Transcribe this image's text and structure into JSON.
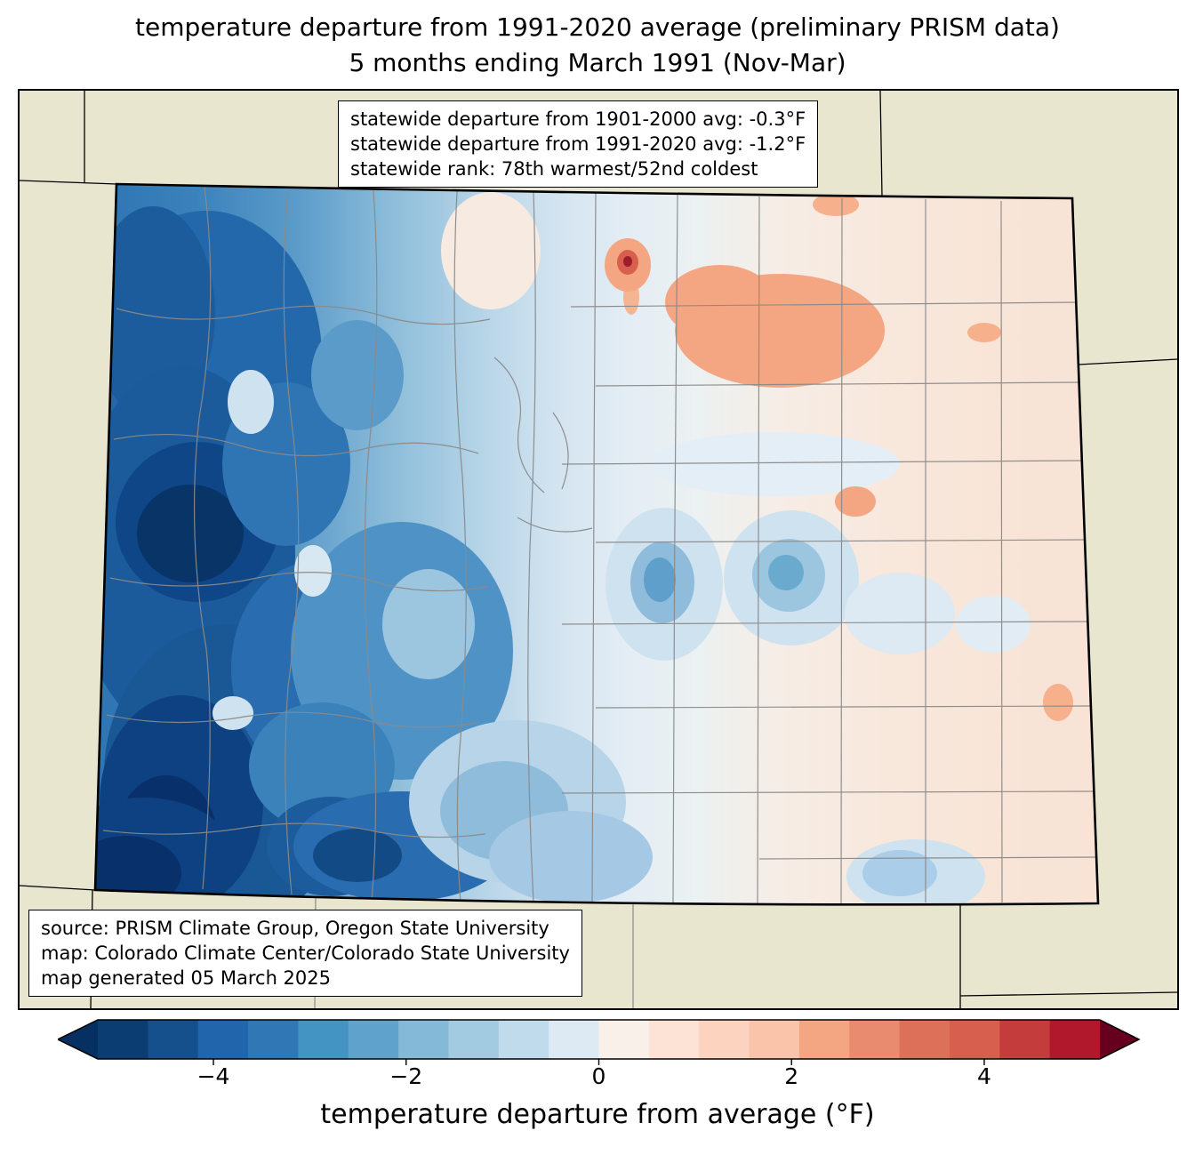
{
  "title": {
    "line1": "temperature departure from 1991-2020 average (preliminary PRISM data)",
    "line2": "5 months ending March 1991 (Nov-Mar)"
  },
  "stats_box": {
    "lines": [
      "statewide departure from 1901-2000 avg: -0.3°F",
      "statewide departure from 1991-2020 avg: -1.2°F",
      "statewide rank: 78th warmest/52nd coldest"
    ]
  },
  "source_box": {
    "lines": [
      "source: PRISM Climate Group, Oregon State University",
      "map: Colorado Climate Center/Colorado State University",
      "map generated 05 March 2025"
    ]
  },
  "colorbar": {
    "label": "temperature departure from average (°F)",
    "ticks": [
      "−4",
      "−2",
      "0",
      "2",
      "4"
    ],
    "tick_values": [
      -4,
      -2,
      0,
      2,
      4
    ],
    "range": [
      -5.2,
      5.2
    ],
    "left_color": "#053061",
    "right_color": "#67001f",
    "segment_colors": [
      "#0b3d73",
      "#15508c",
      "#2166ac",
      "#3077b5",
      "#4393c3",
      "#5fa3cd",
      "#84b9d8",
      "#a2cbe2",
      "#c0dcec",
      "#ddeaf3",
      "#faf0ea",
      "#fde3d6",
      "#fcd3bf",
      "#f9c4a9",
      "#f4a582",
      "#e98b6f",
      "#dd7059",
      "#d6604d",
      "#c43c3c",
      "#b2182b"
    ]
  },
  "colors": {
    "outside_state_fill": "#e9e6d0",
    "county_line": "#8a8a8a",
    "state_outline": "#000000"
  },
  "chart_data": {
    "type": "heatmap",
    "title": "temperature departure from 1991-2020 average (preliminary PRISM data)",
    "subtitle": "5 months ending March 1991 (Nov-Mar)",
    "region": "Colorado (with county borders and neighboring state borders)",
    "variable": "temperature departure from average (°F)",
    "colormap": "RdBu_r",
    "scale_range": [
      -5.2,
      5.2
    ],
    "colorbar_ticks": [
      -4,
      -2,
      0,
      2,
      4
    ],
    "statewide_departure_from_1901_2000_avg_F": -0.3,
    "statewide_departure_from_1991_2020_avg_F": -1.2,
    "statewide_rank": "78th warmest/52nd coldest",
    "spatial_pattern": "strong cold anomalies (about -3 to -5°F, darkest blues) over western/mountain Colorado; light blue (-1 to 0°F) through central Colorado; near zero to slightly warm (+0.5 to +2°F pale pink/salmon) over the eastern plains with a salmon warm patch in the northeast and a small deep-red warm spot north-central"
  }
}
